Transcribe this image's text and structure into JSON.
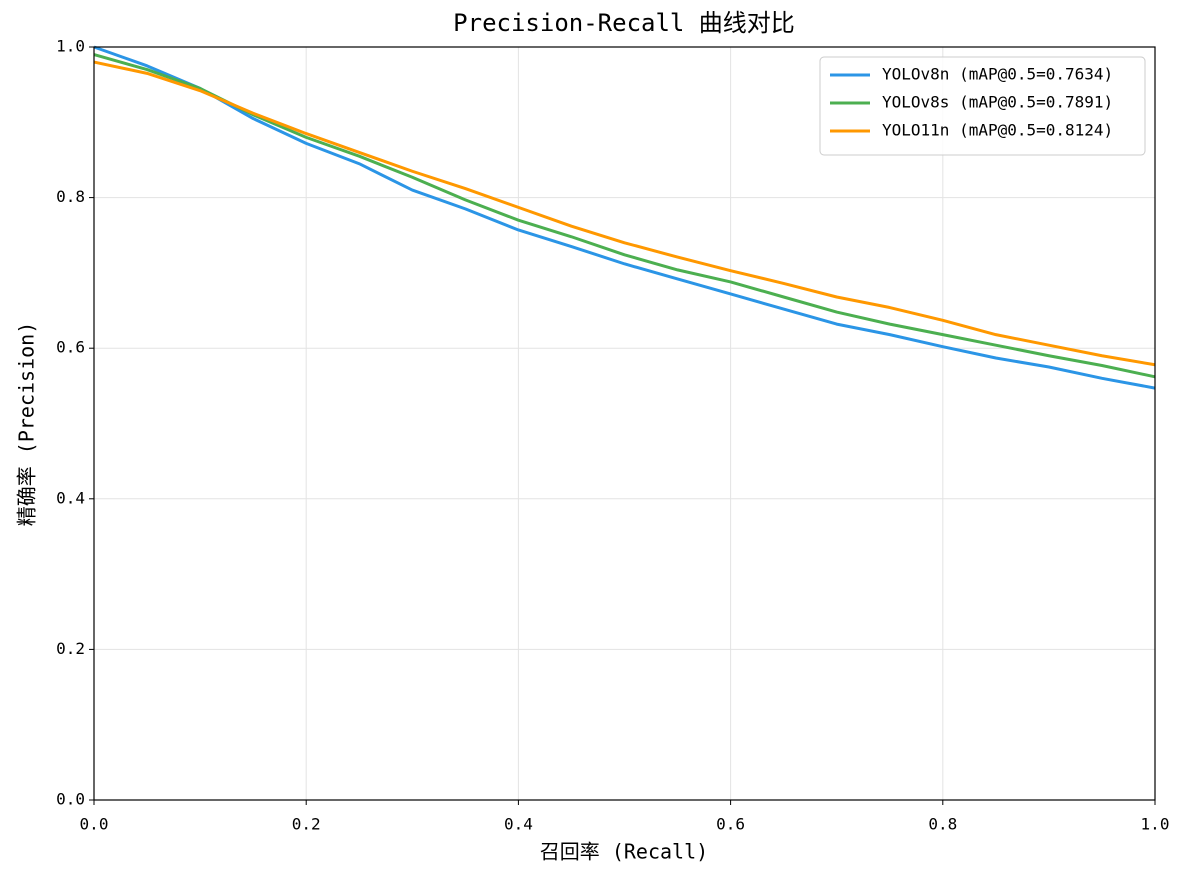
{
  "chart_data": {
    "type": "line",
    "title": "Precision-Recall 曲线对比",
    "xlabel": "召回率 (Recall)",
    "ylabel": "精确率 (Precision)",
    "x": [
      0,
      0.05,
      0.1,
      0.15,
      0.2,
      0.25,
      0.3,
      0.35,
      0.4,
      0.45,
      0.5,
      0.55,
      0.6,
      0.65,
      0.7,
      0.75,
      0.8,
      0.85,
      0.9,
      0.95,
      1.0
    ],
    "series": [
      {
        "name": "YOLOv8n (mAP@0.5=0.7634)",
        "color": "#2b95e6",
        "values": [
          1.0,
          0.975,
          0.945,
          0.905,
          0.872,
          0.845,
          0.81,
          0.785,
          0.757,
          0.735,
          0.712,
          0.692,
          0.672,
          0.652,
          0.632,
          0.618,
          0.602,
          0.587,
          0.575,
          0.56,
          0.547
        ]
      },
      {
        "name": "YOLOv8s (mAP@0.5=0.7891)",
        "color": "#4caf50",
        "values": [
          0.99,
          0.97,
          0.945,
          0.91,
          0.88,
          0.855,
          0.827,
          0.797,
          0.77,
          0.748,
          0.724,
          0.704,
          0.688,
          0.668,
          0.648,
          0.632,
          0.618,
          0.604,
          0.59,
          0.577,
          0.562
        ]
      },
      {
        "name": "YOLO11n (mAP@0.5=0.8124)",
        "color": "#ff9800",
        "values": [
          0.98,
          0.965,
          0.942,
          0.912,
          0.885,
          0.86,
          0.835,
          0.812,
          0.787,
          0.762,
          0.74,
          0.721,
          0.703,
          0.686,
          0.668,
          0.654,
          0.637,
          0.618,
          0.604,
          0.59,
          0.578
        ]
      }
    ],
    "xlim": [
      0,
      1
    ],
    "ylim": [
      0,
      1
    ],
    "xticks": [
      {
        "value": 0,
        "label": "0.0"
      },
      0.2,
      0.4,
      0.6,
      0.8,
      {
        "value": 1,
        "label": "1.0"
      }
    ],
    "yticks": [
      {
        "value": 0,
        "label": "0.0"
      },
      0.2,
      0.4,
      0.6,
      0.8,
      {
        "value": 1,
        "label": "1.0"
      }
    ],
    "grid": true,
    "legend": "upper right"
  }
}
